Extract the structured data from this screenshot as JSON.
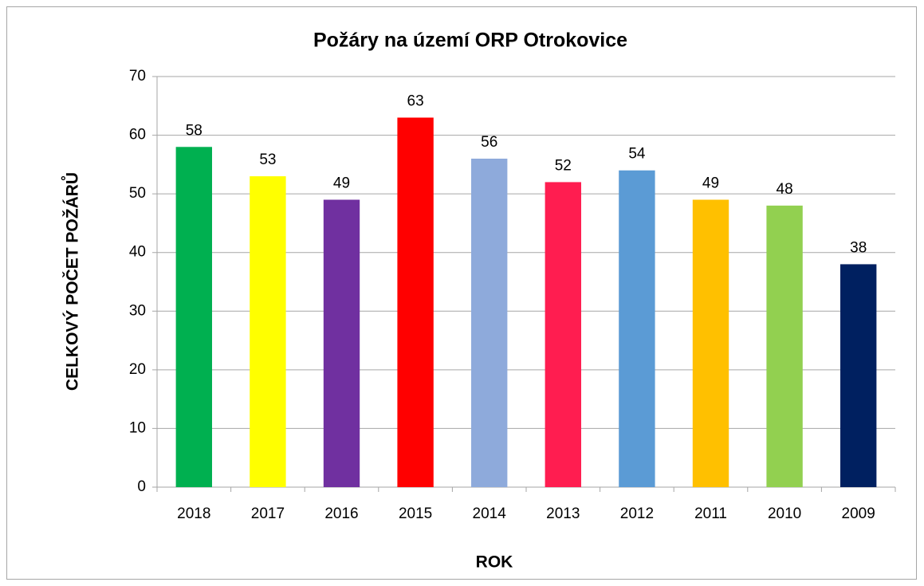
{
  "chart_data": {
    "type": "bar",
    "title": "Požáry na území ORP Otrokovice",
    "x_label": "ROK",
    "y_label": "CELKOVÝ POČET POŽÁRŮ",
    "categories": [
      "2018",
      "2017",
      "2016",
      "2015",
      "2014",
      "2013",
      "2012",
      "2011",
      "2010",
      "2009"
    ],
    "values": [
      58,
      53,
      49,
      63,
      56,
      52,
      54,
      49,
      48,
      38
    ],
    "colors": [
      "#00b050",
      "#ffff00",
      "#7030a0",
      "#ff0000",
      "#8eaadb",
      "#ff1d50",
      "#5b9bd5",
      "#ffc000",
      "#92d050",
      "#002060"
    ],
    "ylim": [
      0,
      70
    ],
    "yticks": [
      0,
      10,
      20,
      30,
      40,
      50,
      60,
      70
    ],
    "grid": true
  }
}
